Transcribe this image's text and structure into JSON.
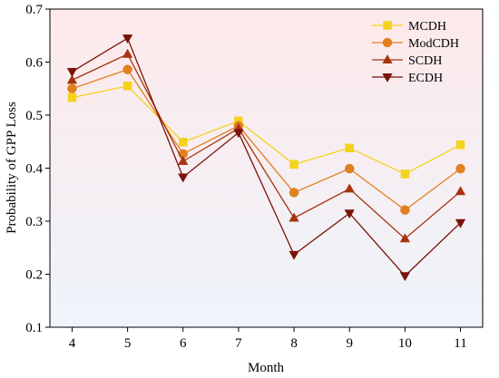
{
  "chart_data": {
    "type": "line",
    "xlabel": "Month",
    "ylabel": "Probability of GPP Loss",
    "x": [
      4,
      5,
      6,
      7,
      8,
      9,
      10,
      11
    ],
    "xlim": [
      3.6,
      11.4
    ],
    "ylim": [
      0.1,
      0.7
    ],
    "yticks": [
      0.1,
      0.2,
      0.3,
      0.4,
      0.5,
      0.6,
      0.7
    ],
    "legend_position": "top-right",
    "background_gradient": [
      "#fde9ea",
      "#eef4fb"
    ],
    "series": [
      {
        "name": "MCDH",
        "marker": "square",
        "color": "#f5d21e",
        "values": [
          0.533,
          0.555,
          0.449,
          0.489,
          0.407,
          0.438,
          0.389,
          0.444
        ]
      },
      {
        "name": "ModCDH",
        "marker": "circle",
        "color": "#e0801e",
        "values": [
          0.55,
          0.586,
          0.427,
          0.48,
          0.354,
          0.399,
          0.321,
          0.399
        ]
      },
      {
        "name": "SCDH",
        "marker": "triangle-up",
        "color": "#a8340f",
        "values": [
          0.566,
          0.615,
          0.413,
          0.475,
          0.306,
          0.361,
          0.267,
          0.356
        ]
      },
      {
        "name": "ECDH",
        "marker": "triangle-down",
        "color": "#7a1208",
        "values": [
          0.582,
          0.645,
          0.383,
          0.467,
          0.237,
          0.315,
          0.197,
          0.297
        ]
      }
    ]
  }
}
